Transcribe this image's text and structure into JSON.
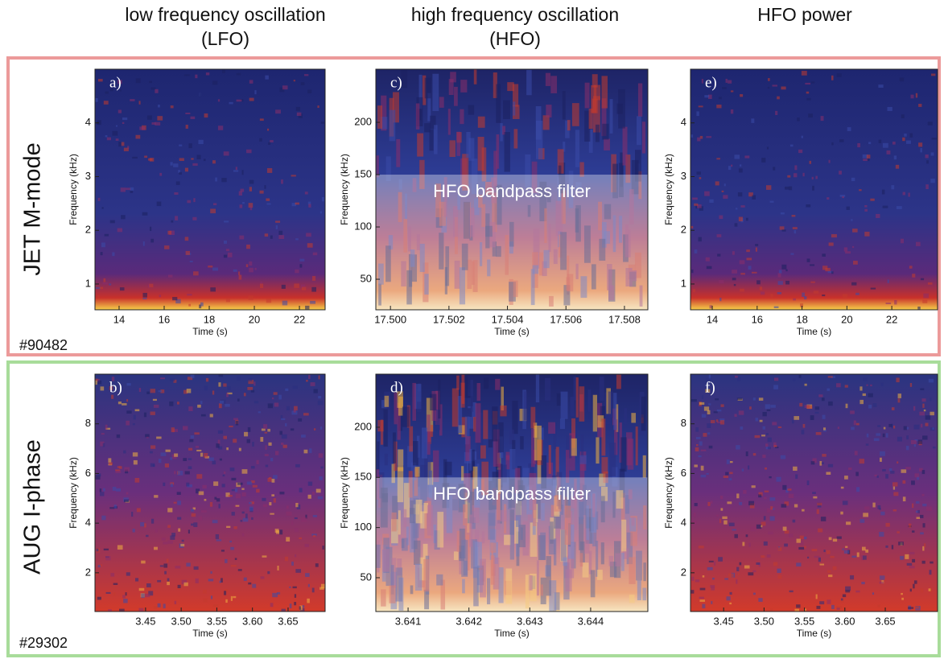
{
  "header": {
    "columns": [
      [
        "low frequency oscillation",
        "(LFO)"
      ],
      [
        "high frequency oscillation",
        "(HFO)"
      ],
      [
        "HFO power"
      ]
    ]
  },
  "rows": [
    {
      "label": "JET M-mode",
      "shot": "#90482"
    },
    {
      "label": "AUG I-phase",
      "shot": "#29302"
    }
  ],
  "panels": [
    {
      "label": "a)",
      "xlabel": "Time (s)",
      "ylabel": "Frequency (kHz)",
      "xlim": [
        12.93,
        23.14
      ],
      "ylim": [
        0.52,
        5.0
      ],
      "xticks": [
        14,
        16,
        18,
        20,
        22
      ],
      "yticks": [
        1,
        2,
        3,
        4
      ]
    },
    {
      "label": "c)",
      "xlabel": "Time (s)",
      "ylabel": "Frequency (kHz)",
      "xlim": [
        17.4995,
        17.5088
      ],
      "ylim": [
        20.8,
        250.8
      ],
      "xticks": [
        {
          "value": 17.5,
          "label": "17.500"
        },
        17.502,
        17.504,
        17.506,
        17.508
      ],
      "yticks": [
        50,
        100,
        150,
        200
      ],
      "annotation": {
        "text": "HFO bandpass filter",
        "upper": 150
      }
    },
    {
      "label": "e)",
      "xlabel": "Time (s)",
      "ylabel": "Frequency (kHz)",
      "xlim": [
        13.03,
        24.04
      ],
      "ylim": [
        0.52,
        5.0
      ],
      "xticks": [
        14,
        16,
        18,
        20,
        22
      ],
      "yticks": [
        1,
        2,
        3,
        4
      ]
    },
    {
      "label": "b)",
      "xlabel": "Time (s)",
      "ylabel": "Frequency (kHz)",
      "xlim": [
        3.379,
        3.702
      ],
      "ylim": [
        0.44,
        10.0
      ],
      "xticks": [
        3.45,
        {
          "value": 3.5,
          "label": "3.50"
        },
        3.55,
        {
          "value": 3.6,
          "label": "3.60"
        },
        3.65
      ],
      "yticks": [
        2,
        4,
        6,
        8
      ]
    },
    {
      "label": "d)",
      "xlabel": "Time (s)",
      "ylabel": "Frequency (kHz)",
      "xlim": [
        3.64047,
        3.64494
      ],
      "ylim": [
        16.3,
        252.9
      ],
      "xticks": [
        3.641,
        3.642,
        3.643,
        3.644
      ],
      "yticks": [
        50,
        100,
        150,
        200
      ],
      "annotation": {
        "text": "HFO bandpass filter",
        "upper": 150
      }
    },
    {
      "label": "f)",
      "xlabel": "Time (s)",
      "ylabel": "Frequency (kHz)",
      "xlim": [
        3.409,
        3.7147
      ],
      "ylim": [
        0.44,
        10.0
      ],
      "xticks": [
        3.45,
        {
          "value": 3.5,
          "label": "3.50"
        },
        3.55,
        {
          "value": 3.6,
          "label": "3.60"
        },
        3.65
      ],
      "yticks": [
        2,
        4,
        6,
        8
      ]
    }
  ]
}
